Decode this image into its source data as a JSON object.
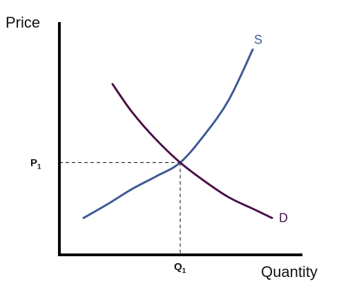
{
  "chart_data": {
    "type": "line",
    "title": "",
    "xlabel": "Quantity",
    "ylabel": "Price",
    "xlim": [
      0,
      100
    ],
    "ylim": [
      0,
      100
    ],
    "grid": false,
    "equilibrium": {
      "price_label": "P",
      "price_subscript": "1",
      "quantity_label": "Q",
      "quantity_subscript": "1",
      "x": 50,
      "y": 40
    },
    "series": [
      {
        "name": "S",
        "color": "#3d5a94",
        "points": [
          [
            10,
            16
          ],
          [
            20,
            22
          ],
          [
            30,
            28.5
          ],
          [
            40,
            34
          ],
          [
            50,
            40
          ],
          [
            60,
            52
          ],
          [
            70,
            67
          ],
          [
            80,
            89
          ]
        ]
      },
      {
        "name": "D",
        "color": "#4a1046",
        "points": [
          [
            22,
            74
          ],
          [
            30,
            62
          ],
          [
            40,
            50
          ],
          [
            50,
            40
          ],
          [
            60,
            32
          ],
          [
            70,
            25
          ],
          [
            80,
            20
          ],
          [
            88,
            16
          ]
        ]
      }
    ]
  }
}
